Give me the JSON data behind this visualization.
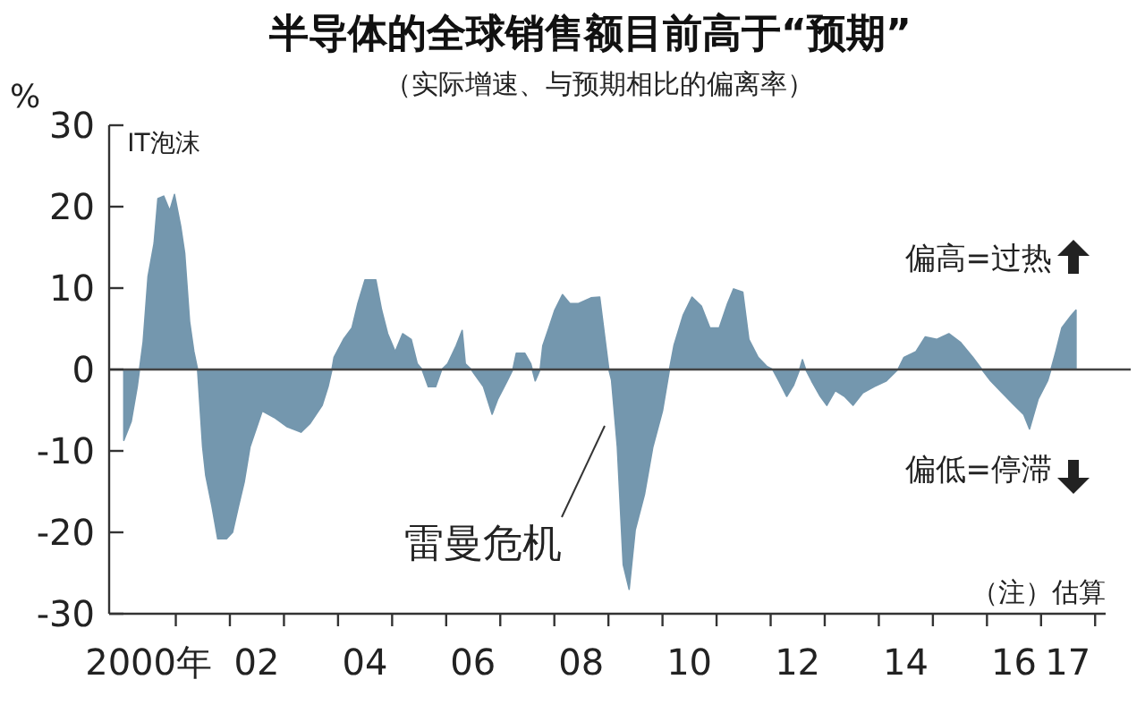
{
  "chart_data": {
    "type": "area",
    "title": "半导体的全球销售额目前高于“预期”",
    "subtitle": "（实际增速、与预期相比的偏离率）",
    "ylabel": "%",
    "x": [
      "2000-01-15",
      "2000-03-05",
      "2000-04-15",
      "2000-05-25",
      "2000-06-27",
      "2000-08-07",
      "2000-09-02",
      "2000-10-11",
      "2000-11-21",
      "2000-12-23",
      "2001-02-03",
      "2001-03-02",
      "2001-04-04",
      "2001-05-03",
      "2001-05-28",
      "2001-07-01",
      "2001-07-22",
      "2001-09-02",
      "2001-10-11",
      "2001-12-09",
      "2002-01-19",
      "2002-02-28",
      "2002-04-08",
      "2002-05-17",
      "2002-06-27",
      "2002-08-07",
      "2002-10-28",
      "2003-01-19",
      "2003-04-26",
      "2003-06-27",
      "2003-09-16",
      "2003-10-26",
      "2003-11-21",
      "2003-12-05",
      "2004-02-07",
      "2004-04-04",
      "2004-05-14",
      "2004-07-01",
      "2004-09-13",
      "2004-10-22",
      "2004-12-02",
      "2005-01-22",
      "2005-03-13",
      "2005-05-10",
      "2005-06-20",
      "2005-07-22",
      "2005-09-02",
      "2005-10-22",
      "2005-12-02",
      "2006-01-11",
      "2006-03-09",
      "2006-04-19",
      "2006-05-10",
      "2006-06-20",
      "2006-07-08",
      "2006-09-09",
      "2006-11-07",
      "2006-12-16",
      "2007-02-17",
      "2007-03-27",
      "2007-04-19",
      "2007-06-16",
      "2007-07-26",
      "2007-08-25",
      "2007-09-27",
      "2007-10-15",
      "2007-11-25",
      "2008-01-04",
      "2008-02-25",
      "2008-04-15",
      "2008-06-13",
      "2008-09-05",
      "2008-11-03",
      "2009-01-04",
      "2009-01-22",
      "2009-03-02",
      "2009-04-11",
      "2009-05-21",
      "2009-07-01",
      "2009-09-02",
      "2009-10-28",
      "2010-01-01",
      "2010-02-17",
      "2010-03-20",
      "2010-05-21",
      "2010-07-19",
      "2010-09-20",
      "2010-11-17",
      "2011-01-19",
      "2011-03-16",
      "2011-04-26",
      "2011-06-27",
      "2011-08-07",
      "2011-10-08",
      "2011-12-05",
      "2012-01-15",
      "2012-02-25",
      "2012-04-19",
      "2012-06-05",
      "2012-07-15",
      "2012-08-03",
      "2012-08-25",
      "2012-10-04",
      "2012-12-02",
      "2013-01-15",
      "2013-03-13",
      "2013-05-14",
      "2013-07-11",
      "2013-09-13",
      "2013-12-02",
      "2014-02-21",
      "2014-05-10",
      "2014-06-20",
      "2014-09-09",
      "2014-11-10",
      "2015-01-28",
      "2015-04-19",
      "2015-07-08",
      "2015-09-27",
      "2015-11-28",
      "2016-01-26",
      "2016-04-15",
      "2016-07-04",
      "2016-09-05",
      "2016-10-15",
      "2016-12-13",
      "2017-02-14",
      "2017-03-09",
      "2017-04-11",
      "2017-05-21",
      "2017-07-22",
      "2017-08-25"
    ],
    "values": [
      -8.7,
      -6.4,
      -2.1,
      3.4,
      11.4,
      15.5,
      21,
      21.3,
      19.5,
      21.5,
      17.6,
      14.3,
      5.9,
      2.2,
      0,
      -9.5,
      -13,
      -16.8,
      -20.8,
      -20.8,
      -20,
      -16.8,
      -13.8,
      -9.5,
      -7.3,
      -5.1,
      -5.9,
      -7,
      -7.7,
      -6.6,
      -4.4,
      -2.1,
      0,
      1.5,
      3.7,
      5.1,
      8.1,
      11,
      11,
      7.3,
      4.4,
      2.2,
      4.4,
      3.7,
      0.7,
      0,
      -2.1,
      -2.1,
      0,
      0.7,
      2.9,
      4.8,
      0.7,
      0,
      -0.5,
      -2.1,
      -5.5,
      -3.6,
      -1.4,
      0,
      2,
      2,
      0.7,
      -1.4,
      0,
      2.9,
      5.1,
      7.3,
      9.2,
      8.1,
      8.1,
      8.8,
      8.9,
      0,
      -1.3,
      -9.5,
      -24,
      -27,
      -19.7,
      -15.3,
      -9.5,
      -5.1,
      0,
      3,
      6.7,
      8.9,
      7.8,
      5.1,
      5.1,
      8.1,
      9.9,
      9.5,
      3.7,
      1.5,
      0.4,
      0,
      -1.4,
      -3.3,
      -1.9,
      0,
      1.2,
      0,
      -1.4,
      -3.3,
      -4.4,
      -2.6,
      -3.3,
      -4.4,
      -2.9,
      -2.1,
      -1.4,
      0,
      1.5,
      2.2,
      4,
      3.7,
      4.4,
      3.3,
      1.5,
      0,
      -1.4,
      -2.9,
      -4.4,
      -5.5,
      -7.3,
      -3.6,
      -1.4,
      0,
      2.2,
      5.1,
      6.6,
      7.3
    ],
    "color": "#7497ae",
    "xlim": [
      "1999-10-08",
      "2018-03-13"
    ],
    "ylim": [
      -30,
      30
    ],
    "xticks": [
      {
        "value": "2000-07-01",
        "label": "2000年"
      },
      {
        "value": "2002-07-01",
        "label": "02"
      },
      {
        "value": "2004-07-01",
        "label": "04"
      },
      {
        "value": "2006-07-01",
        "label": "06"
      },
      {
        "value": "2008-07-01",
        "label": "08"
      },
      {
        "value": "2010-07-01",
        "label": "10"
      },
      {
        "value": "2012-07-01",
        "label": "12"
      },
      {
        "value": "2014-07-01",
        "label": "14"
      },
      {
        "value": "2016-07-01",
        "label": "16"
      },
      {
        "value": "2017-07-01",
        "label": "17"
      },
      {
        "value": "2001-01-01",
        "label": null
      },
      {
        "value": "2002-01-01",
        "label": null
      },
      {
        "value": "2003-01-01",
        "label": null
      },
      {
        "value": "2004-01-01",
        "label": null
      },
      {
        "value": "2005-01-01",
        "label": null
      },
      {
        "value": "2006-01-01",
        "label": null
      },
      {
        "value": "2007-01-01",
        "label": null
      },
      {
        "value": "2008-01-01",
        "label": null
      },
      {
        "value": "2009-01-01",
        "label": null
      },
      {
        "value": "2010-01-01",
        "label": null
      },
      {
        "value": "2011-01-01",
        "label": null
      },
      {
        "value": "2012-01-01",
        "label": null
      },
      {
        "value": "2013-01-01",
        "label": null
      },
      {
        "value": "2014-01-01",
        "label": null
      },
      {
        "value": "2015-01-01",
        "label": null
      },
      {
        "value": "2016-01-01",
        "label": null
      },
      {
        "value": "2017-01-01",
        "label": null
      },
      {
        "value": "2018-01-01",
        "label": null
      }
    ],
    "yticks": [
      -30,
      -20,
      -10,
      0,
      10,
      20,
      30
    ],
    "annotations": [
      {
        "text": "IT泡沫",
        "x": "2000-10-11",
        "y": 21.3
      },
      "偏高=过热",
      "偏低=停滞",
      "雷曼危机",
      "（注）估算"
    ]
  }
}
